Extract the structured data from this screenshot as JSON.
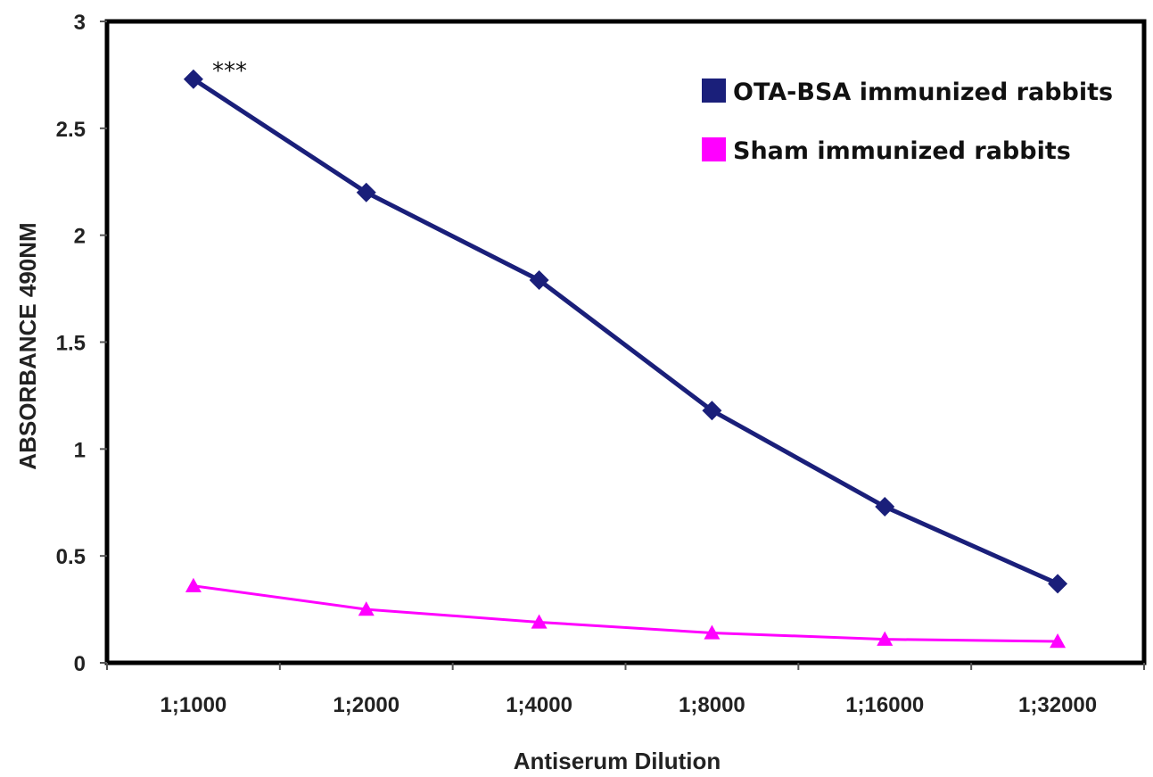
{
  "chart_data": {
    "type": "line",
    "categories": [
      "1;1000",
      "1;2000",
      "1;4000",
      "1;8000",
      "1;16000",
      "1;32000"
    ],
    "series": [
      {
        "name": "OTA-BSA immunized rabbits",
        "values": [
          2.73,
          2.2,
          1.79,
          1.18,
          0.73,
          0.37
        ],
        "color": "#1a1f7a",
        "marker": "diamond"
      },
      {
        "name": "Sham immunized rabbits",
        "values": [
          0.36,
          0.25,
          0.19,
          0.14,
          0.11,
          0.1
        ],
        "color": "#ff00ff",
        "marker": "triangle"
      }
    ],
    "yticks": [
      "0",
      "0.5",
      "1",
      "1.5",
      "2",
      "2.5",
      "3"
    ],
    "ylim": [
      0,
      3
    ],
    "xlabel": "Antiserum Dilution",
    "ylabel": "ABSORBANCE 490NM",
    "annotation": "***",
    "legend_position": "top-right"
  }
}
